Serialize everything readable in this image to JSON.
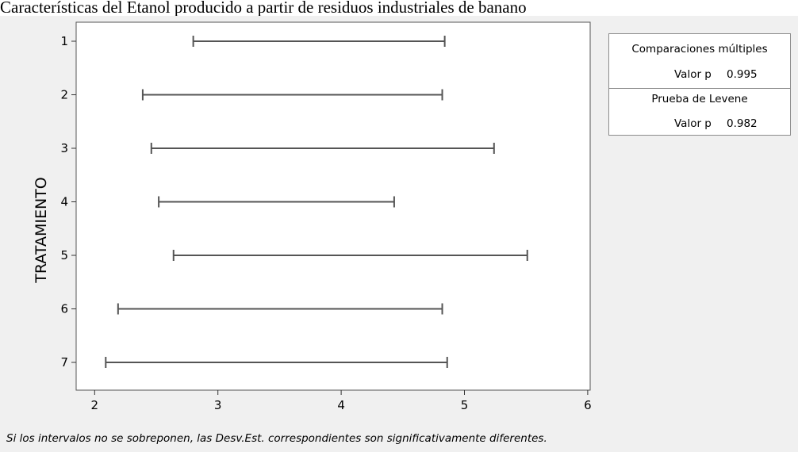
{
  "title": "Características del Etanol producido a partir de residuos industriales de banano",
  "footnote": "Si los intervalos no se sobreponen, las Desv.Est. correspondientes son significativamente diferentes.",
  "stats_box": {
    "mc_title": "Comparaciones múltiples",
    "mc_label": "Valor p",
    "mc_value": "0.995",
    "levene_title": "Prueba de Levene",
    "levene_label": "Valor p",
    "levene_value": "0.982"
  },
  "chart_data": {
    "type": "interval",
    "ylabel": "TRATAMIENTO",
    "xlabel": "",
    "xlim": [
      1.85,
      6.02
    ],
    "xticks": [
      2,
      3,
      4,
      5,
      6
    ],
    "categories": [
      "1",
      "2",
      "3",
      "4",
      "5",
      "6",
      "7"
    ],
    "intervals": [
      {
        "category": "1",
        "low": 2.8,
        "high": 4.84
      },
      {
        "category": "2",
        "low": 2.39,
        "high": 4.82
      },
      {
        "category": "3",
        "low": 2.46,
        "high": 5.24
      },
      {
        "category": "4",
        "low": 2.52,
        "high": 4.43
      },
      {
        "category": "5",
        "low": 2.64,
        "high": 5.51
      },
      {
        "category": "6",
        "low": 2.19,
        "high": 4.82
      },
      {
        "category": "7",
        "low": 2.09,
        "high": 4.86
      }
    ],
    "grid": false,
    "colors": {
      "interval": "#555555",
      "axis": "#333333",
      "plot_bg": "#ffffff",
      "panel_bg": "#f0f0f0"
    }
  }
}
